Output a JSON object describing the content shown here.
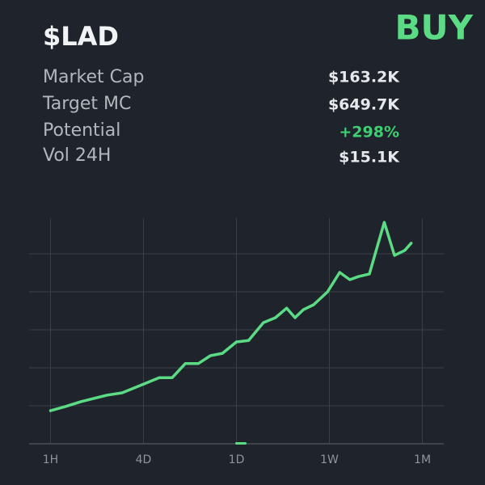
{
  "header": {
    "ticker": "$LAD",
    "signal": "BUY"
  },
  "stats": [
    {
      "label": "Market Cap",
      "value": "$163.2K"
    },
    {
      "label": "Target MC",
      "value": "$649.7K"
    },
    {
      "label": "Potential",
      "value": "+298%"
    },
    {
      "label": "Vol 24H",
      "value": "$15.1K"
    }
  ],
  "chart_data": {
    "type": "line",
    "color": "#5cdb85",
    "grid": true,
    "x": [
      0,
      0.16,
      0.33,
      0.61,
      0.77,
      1.0,
      1.17,
      1.31,
      1.45,
      1.59,
      1.72,
      1.85,
      2.0,
      2.13,
      2.29,
      2.42,
      2.54,
      2.63,
      2.72,
      2.83,
      2.98,
      3.11,
      3.22,
      3.31,
      3.43,
      3.59,
      3.7,
      3.81,
      3.88
    ],
    "values": [
      0.87,
      0.98,
      1.11,
      1.28,
      1.34,
      1.57,
      1.74,
      1.74,
      2.11,
      2.11,
      2.32,
      2.38,
      2.68,
      2.72,
      3.19,
      3.32,
      3.57,
      3.32,
      3.53,
      3.66,
      4.0,
      4.51,
      4.32,
      4.4,
      4.47,
      5.83,
      4.96,
      5.09,
      5.28
    ],
    "xlim": [
      -0.23,
      4.23
    ],
    "xticks": [
      {
        "value": 0,
        "label": "1H"
      },
      {
        "value": 1,
        "label": "4D"
      },
      {
        "value": 2,
        "label": "1D"
      },
      {
        "value": 3,
        "label": "1W"
      },
      {
        "value": 4,
        "label": "1M"
      }
    ],
    "ylim": [
      0,
      6
    ],
    "yticks": [
      1,
      2,
      3,
      4,
      5
    ]
  }
}
